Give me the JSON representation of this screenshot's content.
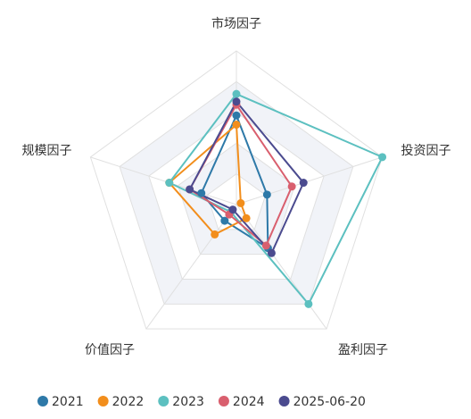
{
  "chart_data": {
    "type": "radar",
    "indicators": [
      "市场因子",
      "投资因子",
      "盈利因子",
      "价值因子",
      "规模因子"
    ],
    "rlim": [
      0,
      100
    ],
    "rticks": [
      20,
      40,
      60,
      80,
      100
    ],
    "series": [
      {
        "name": "2021",
        "color": "#2e79a8",
        "values": [
          58,
          21,
          35,
          13,
          24
        ]
      },
      {
        "name": "2022",
        "color": "#f28e1c",
        "values": [
          52,
          3,
          11,
          24,
          46
        ]
      },
      {
        "name": "2023",
        "color": "#5cc0c0",
        "values": [
          72,
          100,
          80,
          6,
          46
        ]
      },
      {
        "name": "2024",
        "color": "#d95f6e",
        "values": [
          65,
          38,
          33,
          8,
          32
        ]
      },
      {
        "name": "2025-06-20",
        "color": "#4b4b8f",
        "values": [
          67,
          46,
          39,
          4,
          32
        ]
      }
    ]
  }
}
